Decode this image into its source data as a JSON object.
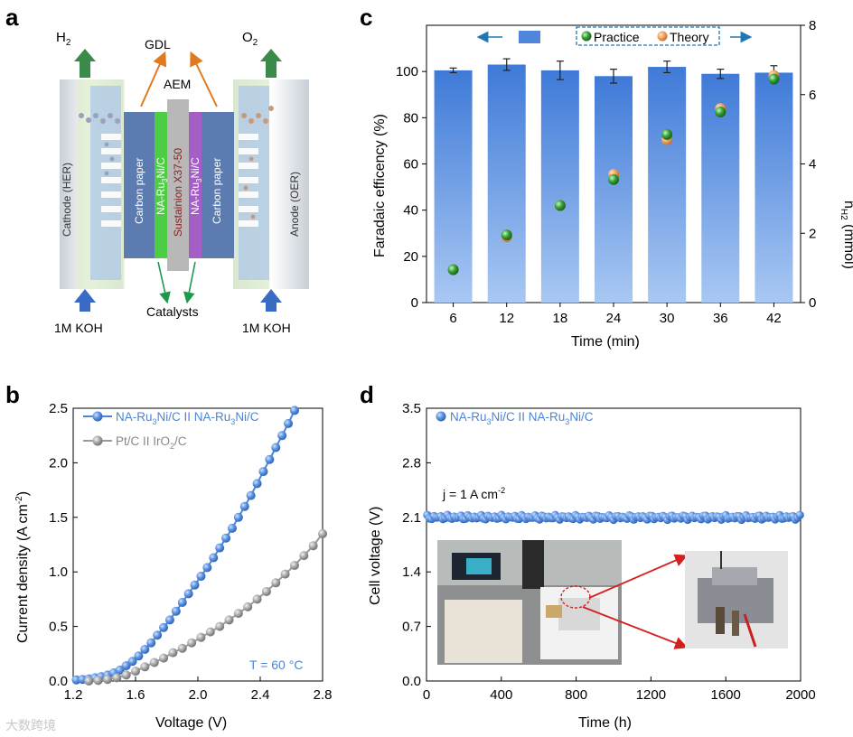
{
  "panels": {
    "a": "a",
    "b": "b",
    "c": "c",
    "d": "d"
  },
  "colors": {
    "blue": "#4a86d8",
    "grey": "#9a9a9a",
    "bar": "#4f86dc",
    "green": "#2e8b2e",
    "orange": "#f0a050",
    "arrowRed": "#d62020"
  },
  "panel_a": {
    "h2": "H",
    "h2_sub": "2",
    "o2": "O",
    "o2_sub": "2",
    "gdl": "GDL",
    "aem": "AEM",
    "cathode": "Cathode (HER)",
    "anode": "Anode (OER)",
    "carbon_paper_left": "Carbon paper",
    "carbon_paper_right": "Carbon paper",
    "cat_left": "NA-Ru",
    "cat_left_sub": "3",
    "cat_left_end": "Ni/C",
    "membrane": "Sustainion X37-50",
    "cat_right": "NA-Ru",
    "cat_right_sub": "3",
    "cat_right_end": "Ni/C",
    "catalysts": "Catalysts",
    "koh_left": "1M KOH",
    "koh_right": "1M KOH"
  },
  "chart_data": [
    {
      "panel": "b",
      "type": "line",
      "xlabel": "Voltage (V)",
      "ylabel": "Current density (A cm",
      "ylabel_sup": "-2",
      "ylabel_end": ")",
      "xlim": [
        1.2,
        2.8
      ],
      "ylim": [
        0,
        2.5
      ],
      "xticks": [
        "1.2",
        "1.6",
        "2.0",
        "2.4",
        "2.8"
      ],
      "yticks": [
        "0.0",
        "0.5",
        "1.0",
        "1.5",
        "2.0",
        "2.5"
      ],
      "annotation": "T = 60 °C",
      "series": [
        {
          "name_parts": [
            "NA-Ru",
            "3",
            "Ni/C II NA-Ru",
            "3",
            "Ni/C"
          ],
          "x": [
            1.22,
            1.26,
            1.3,
            1.34,
            1.38,
            1.42,
            1.46,
            1.5,
            1.54,
            1.58,
            1.62,
            1.66,
            1.7,
            1.74,
            1.78,
            1.82,
            1.86,
            1.9,
            1.94,
            1.98,
            2.02,
            2.06,
            2.1,
            2.14,
            2.18,
            2.22,
            2.26,
            2.3,
            2.34,
            2.38,
            2.42,
            2.46,
            2.5,
            2.54,
            2.58,
            2.62
          ],
          "y": [
            0.01,
            0.015,
            0.02,
            0.03,
            0.04,
            0.055,
            0.075,
            0.1,
            0.14,
            0.18,
            0.23,
            0.29,
            0.35,
            0.42,
            0.49,
            0.56,
            0.64,
            0.72,
            0.8,
            0.88,
            0.96,
            1.04,
            1.13,
            1.22,
            1.31,
            1.4,
            1.5,
            1.6,
            1.7,
            1.81,
            1.92,
            2.03,
            2.14,
            2.25,
            2.36,
            2.48
          ]
        },
        {
          "name_parts": [
            "Pt/C II IrO",
            "2",
            "/C"
          ],
          "x": [
            1.3,
            1.36,
            1.42,
            1.48,
            1.54,
            1.6,
            1.66,
            1.72,
            1.78,
            1.84,
            1.9,
            1.96,
            2.02,
            2.08,
            2.14,
            2.2,
            2.26,
            2.32,
            2.38,
            2.44,
            2.5,
            2.56,
            2.62,
            2.68,
            2.74,
            2.8
          ],
          "y": [
            0.0,
            0.005,
            0.015,
            0.03,
            0.055,
            0.09,
            0.13,
            0.17,
            0.21,
            0.26,
            0.3,
            0.35,
            0.4,
            0.45,
            0.5,
            0.56,
            0.62,
            0.68,
            0.75,
            0.82,
            0.9,
            0.98,
            1.06,
            1.15,
            1.24,
            1.35
          ]
        }
      ]
    },
    {
      "panel": "c",
      "type": "bar",
      "xlabel": "Time (min)",
      "ylabel": "Faradaic efficency (%)",
      "ylabel_right": "n",
      "ylabel_right_sub": "H2",
      "ylabel_right_end": " (mmol)",
      "categories": [
        "6",
        "12",
        "18",
        "24",
        "30",
        "36",
        "42"
      ],
      "values": [
        100.5,
        103.0,
        100.5,
        98.0,
        102.0,
        99.0,
        99.5
      ],
      "errors": [
        1.0,
        2.5,
        4.0,
        3.0,
        2.5,
        2.0,
        3.0
      ],
      "ylim": [
        0,
        120
      ],
      "yticks": [
        "0",
        "20",
        "40",
        "60",
        "80",
        "100"
      ],
      "ylim_right": [
        0,
        8
      ],
      "yticks_right": [
        "0",
        "2",
        "4",
        "6",
        "8"
      ],
      "legend": {
        "practice": "Practice",
        "theory": "Theory"
      },
      "practice": [
        0.95,
        1.95,
        2.8,
        3.55,
        4.85,
        5.5,
        6.45
      ],
      "theory": [
        0.95,
        1.9,
        2.8,
        3.7,
        4.7,
        5.6,
        6.55
      ]
    },
    {
      "panel": "d",
      "type": "scatter",
      "xlabel": "Time (h)",
      "ylabel": "Cell voltage (V)",
      "xlim": [
        0,
        2000
      ],
      "ylim": [
        0,
        3.5
      ],
      "xticks": [
        "0",
        "400",
        "800",
        "1200",
        "1600",
        "2000"
      ],
      "yticks": [
        "0.0",
        "0.7",
        "1.4",
        "2.1",
        "2.8",
        "3.5"
      ],
      "legend_parts": [
        "NA-Ru",
        "3",
        "Ni/C II NA-Ru",
        "3",
        "Ni/C"
      ],
      "annotation": "j = 1 A cm",
      "annotation_sup": "-2",
      "series_value": 2.1,
      "series_range": [
        0,
        2000
      ]
    }
  ],
  "watermark": "大数跨境"
}
